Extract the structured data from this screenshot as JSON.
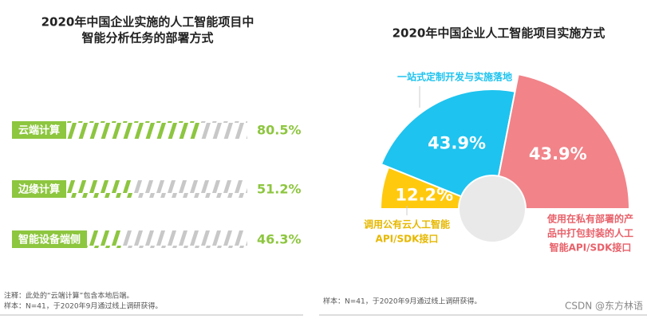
{
  "chart_data": [
    {
      "type": "bar",
      "title": [
        "2020年中国企业实施的人工智能项目中",
        "智能分析任务的部署方式"
      ],
      "categories": [
        "云端计算",
        "边缘计算",
        "智能设备端侧"
      ],
      "values": [
        80.5,
        51.2,
        46.3
      ],
      "value_labels": [
        "80.5%",
        "51.2%",
        "46.3%"
      ],
      "xlim": [
        0,
        100
      ],
      "color": "#8dc63f"
    },
    {
      "type": "pie",
      "title": "2020年中国企业人工智能项目实施方式",
      "categories": [
        [
          "调用公有云人工智能",
          "API/SDK接口"
        ],
        [
          "一站式定制开发与实施落地"
        ],
        [
          "使用在私有部署的产",
          "品中打包封装的人工",
          "智能API/SDK接口"
        ]
      ],
      "values": [
        12.2,
        43.9,
        43.9
      ],
      "value_labels": [
        "12.2%",
        "43.9%",
        "43.9%"
      ],
      "colors": [
        "#ffc90e",
        "#1ec3ef",
        "#f18389"
      ]
    }
  ],
  "notes_left": [
    "注释：此处的“云端计算”包含本地后端。",
    "样本：N=41，于2020年9月通过线上调研获得。"
  ],
  "notes_right": [
    "样本：N=41，于2020年9月通过线上调研获得。"
  ],
  "watermark": "CSDN @东方林语"
}
